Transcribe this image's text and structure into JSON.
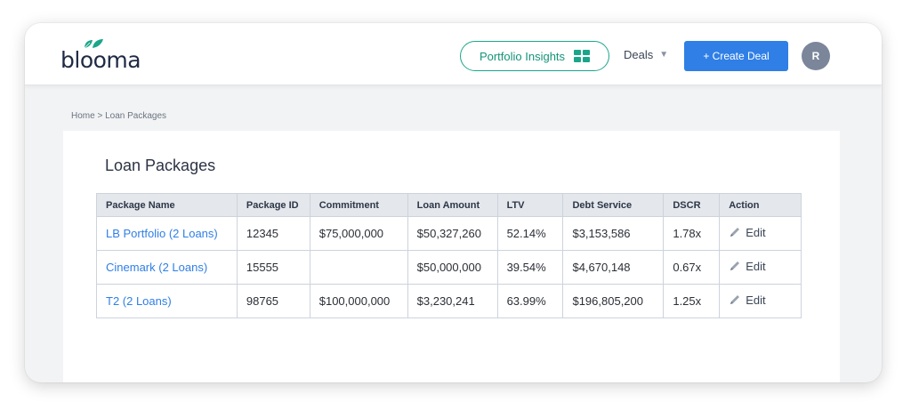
{
  "app": {
    "logo_text": "blooma"
  },
  "header": {
    "insights_label": "Portfolio Insights",
    "deals_label": "Deals",
    "create_label": "+ Create Deal",
    "avatar_initial": "R"
  },
  "breadcrumb": {
    "home": "Home",
    "separator": ">",
    "current": "Loan Packages"
  },
  "page": {
    "title": "Loan Packages"
  },
  "table": {
    "columns": [
      "Package Name",
      "Package ID",
      "Commitment",
      "Loan Amount",
      "LTV",
      "Debt Service",
      "DSCR",
      "Action"
    ],
    "rows": [
      {
        "name": "LB Portfolio (2 Loans)",
        "id": "12345",
        "commitment": "$75,000,000",
        "loan_amount": "$50,327,260",
        "ltv": "52.14%",
        "debt_service": "$3,153,586",
        "dscr": "1.78x",
        "action": "Edit"
      },
      {
        "name": "Cinemark (2 Loans)",
        "id": "15555",
        "commitment": "",
        "loan_amount": "$50,000,000",
        "ltv": "39.54%",
        "debt_service": "$4,670,148",
        "dscr": "0.67x",
        "action": "Edit"
      },
      {
        "name": "T2 (2 Loans)",
        "id": "98765",
        "commitment": "$100,000,000",
        "loan_amount": "$3,230,241",
        "ltv": "63.99%",
        "debt_service": "$196,805,200",
        "dscr": "1.25x",
        "action": "Edit"
      }
    ]
  },
  "colors": {
    "brand_green": "#1aa68a",
    "primary_blue": "#2f7fe6",
    "avatar_gray": "#7b869b"
  },
  "icons": {
    "insights": "grid-icon",
    "deals": "caret-down-icon",
    "edit": "pencil-icon",
    "logo": "leaf-icon"
  }
}
